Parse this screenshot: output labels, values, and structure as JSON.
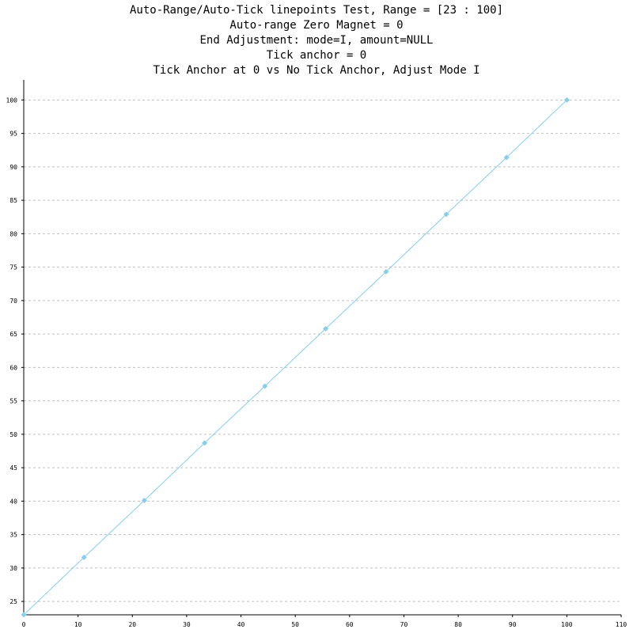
{
  "chart_data": {
    "type": "line",
    "title_lines": [
      "Auto-Range/Auto-Tick linepoints Test, Range = [23 : 100]",
      "Auto-range Zero Magnet = 0",
      "End Adjustment: mode=I, amount=NULL",
      "Tick anchor = 0",
      "Tick Anchor at 0 vs No Tick Anchor, Adjust Mode I"
    ],
    "xlabel": "",
    "ylabel": "",
    "xlim": [
      0,
      110
    ],
    "ylim": [
      23,
      103
    ],
    "x_ticks": [
      "0",
      "10",
      "20",
      "30",
      "40",
      "50",
      "60",
      "70",
      "80",
      "90",
      "100",
      "110"
    ],
    "y_ticks": [
      "25",
      "30",
      "35",
      "40",
      "45",
      "50",
      "55",
      "60",
      "65",
      "70",
      "75",
      "80",
      "85",
      "90",
      "95",
      "100"
    ],
    "grid": "horizontal-dashed",
    "series": [
      {
        "x": [
          0,
          11.1,
          22.2,
          33.3,
          44.4,
          55.6,
          66.7,
          77.8,
          88.9,
          100
        ],
        "y": [
          23,
          31.6,
          40.1,
          48.7,
          57.2,
          65.8,
          74.3,
          82.9,
          91.4,
          100
        ],
        "color": "#87ceeb",
        "marker": "diamond"
      }
    ]
  }
}
